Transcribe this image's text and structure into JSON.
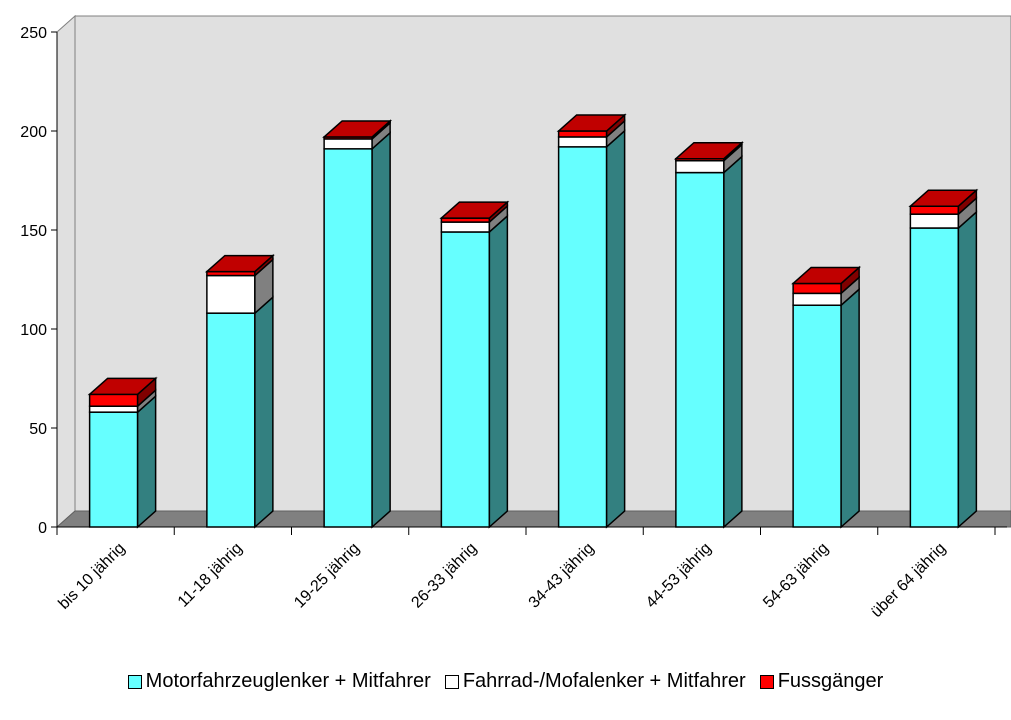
{
  "chart_data": {
    "type": "bar",
    "stacked": true,
    "three_d": true,
    "categories": [
      "bis 10 jährig",
      "11-18 jährig",
      "19-25 jährig",
      "26-33 jährig",
      "34-43 jährig",
      "44-53 jährig",
      "54-63 jährig",
      "über 64 jährig"
    ],
    "series": [
      {
        "name": "Motorfahrzeuglenker + Mitfahrer",
        "color": "#66ffff",
        "side_color": "#338080",
        "values": [
          58,
          108,
          191,
          149,
          192,
          179,
          112,
          151
        ]
      },
      {
        "name": "Fahrrad-/Mofalenker + Mitfahrer",
        "color": "#ffffff",
        "side_color": "#808080",
        "values": [
          3,
          19,
          5,
          5,
          5,
          6,
          6,
          7
        ]
      },
      {
        "name": "Fussgänger",
        "color": "#ff0000",
        "side_color": "#800000",
        "values": [
          6,
          2,
          1,
          2,
          3,
          1,
          5,
          4
        ]
      }
    ],
    "yticks": [
      0,
      50,
      100,
      150,
      200,
      250
    ],
    "ylim": [
      0,
      250
    ],
    "grid": false,
    "legend_position": "bottom",
    "wall_color": "#e0e0e0",
    "floor_color": "#808080"
  }
}
